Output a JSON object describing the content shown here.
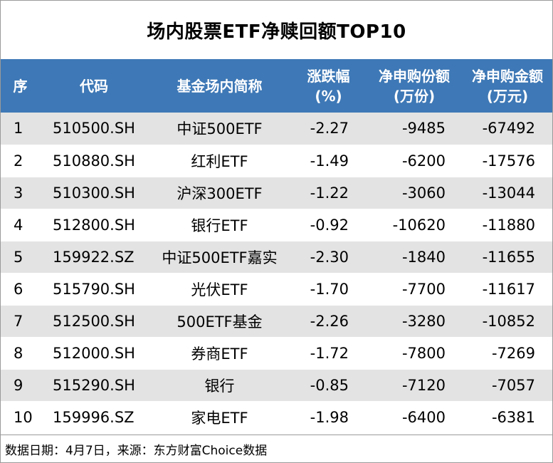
{
  "title": "场内股票ETF净赎回额TOP10",
  "header": {
    "col_index": "序",
    "col_code": "代码",
    "col_name": "基金场内简称",
    "col_change_1": "涨跌幅",
    "col_change_2": "(%)",
    "col_shares_1": "净申购份额",
    "col_shares_2": "(万份)",
    "col_amount_1": "净申购金额",
    "col_amount_2": "(万元)"
  },
  "rows": [
    {
      "idx": "1",
      "code": "510500.SH",
      "name": "中证500ETF",
      "change": "-2.27",
      "shares": "-9485",
      "amount": "-67492"
    },
    {
      "idx": "2",
      "code": "510880.SH",
      "name": "红利ETF",
      "change": "-1.49",
      "shares": "-6200",
      "amount": "-17576"
    },
    {
      "idx": "3",
      "code": "510300.SH",
      "name": "沪深300ETF",
      "change": "-1.22",
      "shares": "-3060",
      "amount": "-13044"
    },
    {
      "idx": "4",
      "code": "512800.SH",
      "name": "银行ETF",
      "change": "-0.92",
      "shares": "-10620",
      "amount": "-11880"
    },
    {
      "idx": "5",
      "code": "159922.SZ",
      "name": "中证500ETF嘉实",
      "change": "-2.30",
      "shares": "-1840",
      "amount": "-11655"
    },
    {
      "idx": "6",
      "code": "515790.SH",
      "name": "光伏ETF",
      "change": "-1.70",
      "shares": "-7700",
      "amount": "-11617"
    },
    {
      "idx": "7",
      "code": "512500.SH",
      "name": "500ETF基金",
      "change": "-2.26",
      "shares": "-3280",
      "amount": "-10852"
    },
    {
      "idx": "8",
      "code": "512000.SH",
      "name": "券商ETF",
      "change": "-1.72",
      "shares": "-7800",
      "amount": "-7269"
    },
    {
      "idx": "9",
      "code": "515290.SH",
      "name": "银行",
      "change": "-0.85",
      "shares": "-7120",
      "amount": "-7057"
    },
    {
      "idx": "10",
      "code": "159996.SZ",
      "name": "家电ETF",
      "change": "-1.98",
      "shares": "-6400",
      "amount": "-6381"
    }
  ],
  "footer": "数据日期：4月7日，来源：东方财富Choice数据",
  "colors": {
    "header_bg": "#3e78b6",
    "stripe": "#e3e3e3"
  }
}
